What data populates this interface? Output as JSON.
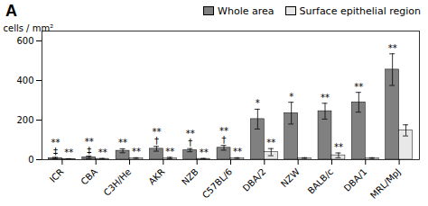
{
  "chart_data": {
    "type": "bar",
    "title": "A",
    "categories": [
      "ICR",
      "CBA",
      "C3H/He",
      "AKR",
      "NZB",
      "C57BL/6",
      "DBA/2",
      "NZW",
      "BALB/c",
      "DBA/1",
      "MRL/MpJ"
    ],
    "series": [
      {
        "name": "Whole area",
        "color": "#808080",
        "values": [
          8,
          12,
          45,
          55,
          48,
          60,
          205,
          235,
          245,
          290,
          455
        ],
        "errors": [
          4,
          6,
          10,
          12,
          8,
          12,
          50,
          55,
          40,
          50,
          80
        ]
      },
      {
        "name": "Surface epithelial region",
        "color": "#e8e8e8",
        "values": [
          3,
          4,
          6,
          8,
          4,
          6,
          38,
          6,
          22,
          6,
          148
        ],
        "errors": [
          2,
          2,
          4,
          4,
          2,
          4,
          18,
          4,
          12,
          4,
          28
        ]
      }
    ],
    "ylabel": "cells / mm²",
    "ylim": [
      0,
      650
    ],
    "yticks": [
      0,
      200,
      400,
      600
    ],
    "legend": "upper right",
    "annotations": [
      {
        "category": "ICR",
        "series": "Whole area",
        "text": "**"
      },
      {
        "category": "ICR",
        "series": "Whole area",
        "text": "‡"
      },
      {
        "category": "ICR",
        "series": "Surface epithelial region",
        "text": "**"
      },
      {
        "category": "CBA",
        "series": "Whole area",
        "text": "**"
      },
      {
        "category": "CBA",
        "series": "Whole area",
        "text": "‡"
      },
      {
        "category": "CBA",
        "series": "Surface epithelial region",
        "text": "**"
      },
      {
        "category": "C3H/He",
        "series": "Whole area",
        "text": "**"
      },
      {
        "category": "C3H/He",
        "series": "Surface epithelial region",
        "text": "**"
      },
      {
        "category": "AKR",
        "series": "Whole area",
        "text": "**"
      },
      {
        "category": "AKR",
        "series": "Whole area",
        "text": "†"
      },
      {
        "category": "AKR",
        "series": "Surface epithelial region",
        "text": "**"
      },
      {
        "category": "NZB",
        "series": "Whole area",
        "text": "**"
      },
      {
        "category": "NZB",
        "series": "Whole area",
        "text": "†"
      },
      {
        "category": "NZB",
        "series": "Surface epithelial region",
        "text": "**"
      },
      {
        "category": "C57BL/6",
        "series": "Whole area",
        "text": "**"
      },
      {
        "category": "C57BL/6",
        "series": "Whole area",
        "text": "†"
      },
      {
        "category": "C57BL/6",
        "series": "Surface epithelial region",
        "text": "**"
      },
      {
        "category": "DBA/2",
        "series": "Whole area",
        "text": "*"
      },
      {
        "category": "DBA/2",
        "series": "Surface epithelial region",
        "text": "**"
      },
      {
        "category": "NZW",
        "series": "Whole area",
        "text": "*"
      },
      {
        "category": "BALB/c",
        "series": "Whole area",
        "text": "**"
      },
      {
        "category": "BALB/c",
        "series": "Surface epithelial region",
        "text": "**"
      },
      {
        "category": "DBA/1",
        "series": "Whole area",
        "text": "**"
      },
      {
        "category": "MRL/MpJ",
        "series": "Whole area",
        "text": "**"
      }
    ]
  }
}
